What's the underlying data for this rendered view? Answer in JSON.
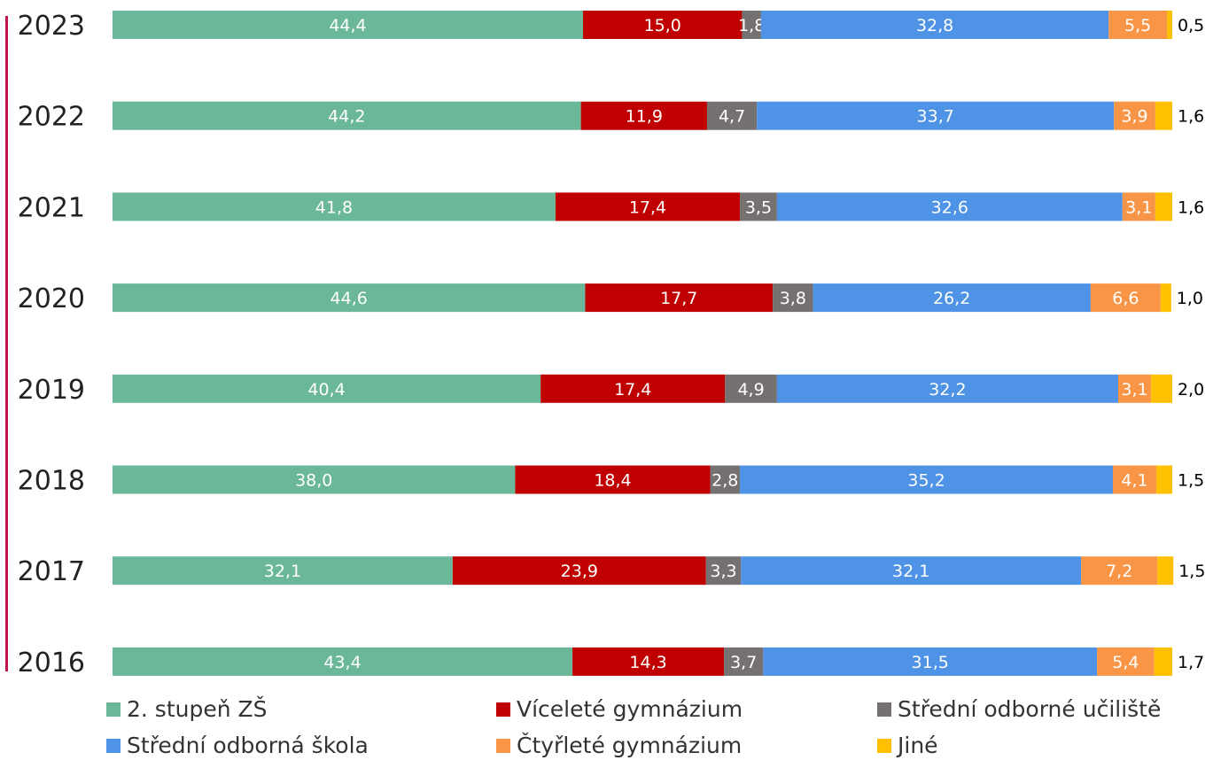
{
  "chart_data": {
    "type": "bar",
    "orientation": "horizontal",
    "stacked": true,
    "categories": [
      "2023",
      "2022",
      "2021",
      "2020",
      "2019",
      "2018",
      "2017",
      "2016"
    ],
    "series": [
      {
        "name": "2. stupeň ZŠ",
        "color": "#6ab799",
        "values": [
          44.4,
          44.2,
          41.8,
          44.6,
          40.4,
          38.0,
          32.1,
          43.4
        ],
        "labels": [
          "44,4",
          "44,2",
          "41,8",
          "44,6",
          "40,4",
          "38,0",
          "32,1",
          "43,4"
        ]
      },
      {
        "name": "Víceleté gymnázium",
        "color": "#c00000",
        "values": [
          15.0,
          11.9,
          17.4,
          17.7,
          17.4,
          18.4,
          23.9,
          14.3
        ],
        "labels": [
          "15,0",
          "11,9",
          "17,4",
          "17,7",
          "17,4",
          "18,4",
          "23,9",
          "14,3"
        ]
      },
      {
        "name": "Střední odborné učiliště",
        "color": "#767171",
        "values": [
          1.8,
          4.7,
          3.5,
          3.8,
          4.9,
          2.8,
          3.3,
          3.7
        ],
        "labels": [
          "1,8",
          "4,7",
          "3,5",
          "3,8",
          "4,9",
          "2,8",
          "3,3",
          "3,7"
        ]
      },
      {
        "name": "Střední odborná škola",
        "color": "#4f93e6",
        "values": [
          32.8,
          33.7,
          32.6,
          26.2,
          32.2,
          35.2,
          32.1,
          31.5
        ],
        "labels": [
          "32,8",
          "33,7",
          "32,6",
          "26,2",
          "32,2",
          "35,2",
          "32,1",
          "31,5"
        ]
      },
      {
        "name": "Čtyřleté gymnázium",
        "color": "#f99547",
        "values": [
          5.5,
          3.9,
          3.1,
          6.6,
          3.1,
          4.1,
          7.2,
          5.4
        ],
        "labels": [
          "5,5",
          "3,9",
          "3,1",
          "6,6",
          "3,1",
          "4,1",
          "7,2",
          "5,4"
        ]
      },
      {
        "name": "Jiné",
        "color": "#ffc000",
        "values": [
          0.5,
          1.6,
          1.6,
          1.0,
          2.0,
          1.5,
          1.5,
          1.7
        ],
        "labels": [
          "0,5",
          "1,6",
          "1,6",
          "1,0",
          "2,0",
          "1,5",
          "1,5",
          "1,7"
        ]
      }
    ],
    "xlim": [
      0,
      100
    ],
    "legend_position": "bottom",
    "grid": false
  }
}
